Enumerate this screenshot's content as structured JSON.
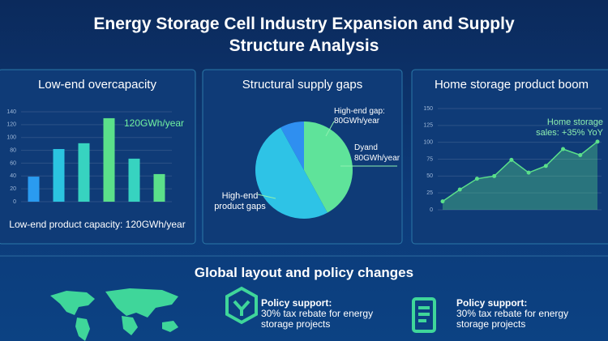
{
  "title": "Energy Storage Cell Industry Expansion and Supply Structure Analysis",
  "chart_data": [
    {
      "type": "bar",
      "title": "Low-end overcapacity",
      "annotation": "120GWh/year",
      "caption": "Low-end product capacity: 120GWh/year",
      "categories": [
        null,
        null,
        null,
        null,
        null,
        null
      ],
      "values": [
        39,
        82,
        91,
        130,
        67,
        43
      ],
      "colors": [
        "#2a9bf0",
        "#2bc4e0",
        "#37d3c0",
        "#5be08a",
        "#37d3c0",
        "#5be08a"
      ],
      "ylim": [
        0,
        140
      ],
      "yticks": [
        0,
        20,
        40,
        60,
        80,
        100,
        120,
        140
      ]
    },
    {
      "type": "pie",
      "title": "Structural supply gaps",
      "values": [
        42,
        50,
        8
      ],
      "colors": [
        "#5fe39a",
        "#2ec3e6",
        "#2f8ff0"
      ],
      "annotations": [
        "High-end gap: 80GWh/year",
        "Dyand 80GWh/year",
        "High-end product gaps"
      ]
    },
    {
      "type": "area",
      "title": "Home storage product boom",
      "annotation": "Home storage sales: +35% YoY",
      "categories": [
        null,
        null,
        null,
        null,
        null,
        null,
        null,
        null,
        null,
        null
      ],
      "values": [
        12.5,
        30,
        46,
        50,
        74,
        55,
        65,
        90,
        81,
        101
      ],
      "color": "#5be08a",
      "ylim": [
        0,
        150
      ],
      "yticks": [
        0,
        25,
        50,
        75,
        100,
        125,
        150
      ]
    }
  ],
  "section": {
    "title": "Global layout and policy changes",
    "items": [
      {
        "title": "Policy support:",
        "text": "30% tax rebate for energy storage projects"
      },
      {
        "title": "Policy support:",
        "text": "30% tax rebate for energy storage projects"
      }
    ]
  }
}
